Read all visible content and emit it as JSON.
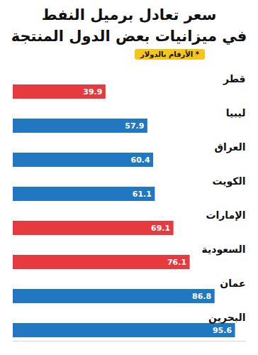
{
  "chart_data": {
    "type": "bar",
    "orientation": "horizontal",
    "title": "سعر تعادل برميل النفط\nفي ميزانيات بعض الدول المنتجة",
    "annotation": "* الأرقام بالدولار",
    "categories": [
      "قطر",
      "ليبيا",
      "العراق",
      "الكويت",
      "الإمارات",
      "السعودية",
      "عمان",
      "البحرين"
    ],
    "values": [
      39.9,
      57.9,
      60.4,
      61.1,
      69.1,
      76.1,
      86.8,
      95.6
    ],
    "colors": [
      "#e63a3f",
      "#1f78c1",
      "#1f78c1",
      "#1f78c1",
      "#e63a3f",
      "#e63a3f",
      "#1f78c1",
      "#1f78c1"
    ],
    "xlim": [
      0,
      100
    ],
    "data_labels": true,
    "tick_labels": "y",
    "grid": false
  }
}
